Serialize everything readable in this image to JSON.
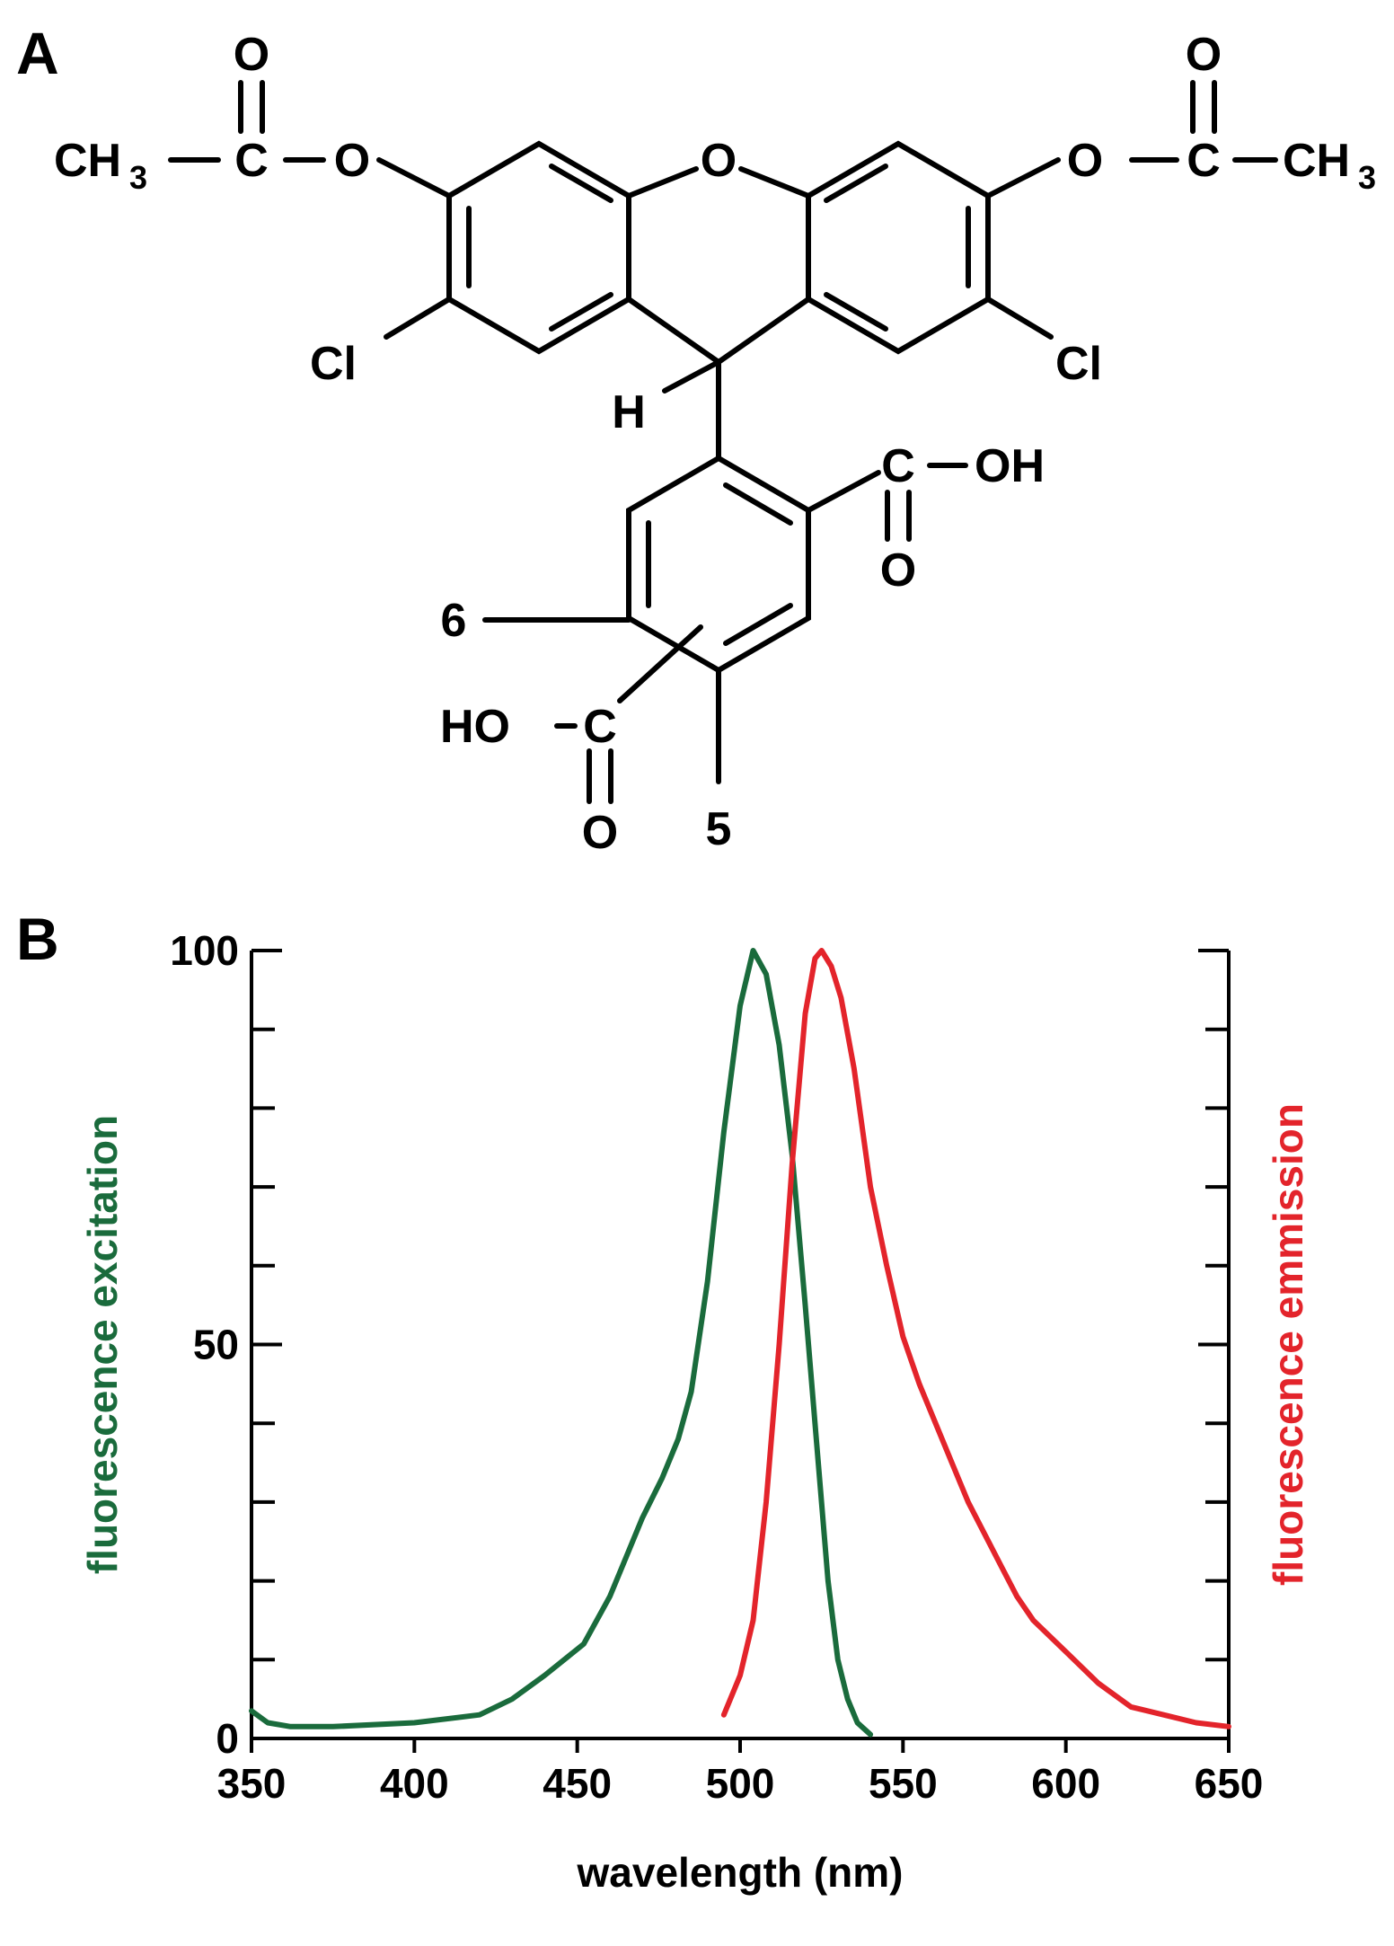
{
  "panel_a": {
    "label": "A",
    "atoms": {
      "oxygen": "O",
      "carbon": "C",
      "ch": "CH",
      "methyl_sub": "3",
      "chlorine": "Cl",
      "hydrogen": "H",
      "hydroxyl": "OH",
      "hydroxyl_left": "HO",
      "position_6": "6",
      "position_5": "5"
    }
  },
  "panel_b": {
    "label": "B"
  },
  "colors": {
    "excitation": "#1a6b3c",
    "emission": "#e3242b",
    "ink": "#000000"
  },
  "chart_data": {
    "type": "line",
    "xlabel": "wavelength (nm)",
    "ylabel_left": "fluorescence excitation",
    "ylabel_right": "fluorescence emmission",
    "xlim": [
      350,
      650
    ],
    "ylim": [
      0,
      100
    ],
    "x_ticks": [
      350,
      400,
      450,
      500,
      550,
      600,
      650
    ],
    "y_ticks": [
      0,
      50,
      100
    ],
    "y_minor_step": 10,
    "grid": false,
    "legend": "none",
    "series": [
      {
        "role": "excitation",
        "x": [
          350,
          355,
          362,
          375,
          400,
          420,
          430,
          440,
          452,
          460,
          466,
          470,
          476,
          481,
          485,
          490,
          495,
          500,
          504,
          508,
          512,
          516,
          520,
          524,
          527,
          530,
          533,
          536,
          540
        ],
        "y": [
          3.5,
          2,
          1.5,
          1.5,
          2,
          3,
          5,
          8,
          12,
          18,
          24,
          28,
          33,
          38,
          44,
          58,
          77,
          93,
          100,
          97,
          88,
          74,
          55,
          35,
          20,
          10,
          5,
          2,
          0.5
        ]
      },
      {
        "role": "emission",
        "x": [
          495,
          500,
          504,
          508,
          512,
          516,
          520,
          523,
          525,
          528,
          531,
          535,
          540,
          545,
          550,
          555,
          560,
          565,
          570,
          575,
          580,
          585,
          590,
          600,
          610,
          620,
          630,
          640,
          650
        ],
        "y": [
          3,
          8,
          15,
          30,
          50,
          73,
          92,
          99,
          100,
          98,
          94,
          85,
          70,
          60,
          51,
          45,
          40,
          35,
          30,
          26,
          22,
          18,
          15,
          11,
          7,
          4,
          3,
          2,
          1.5
        ]
      }
    ]
  }
}
